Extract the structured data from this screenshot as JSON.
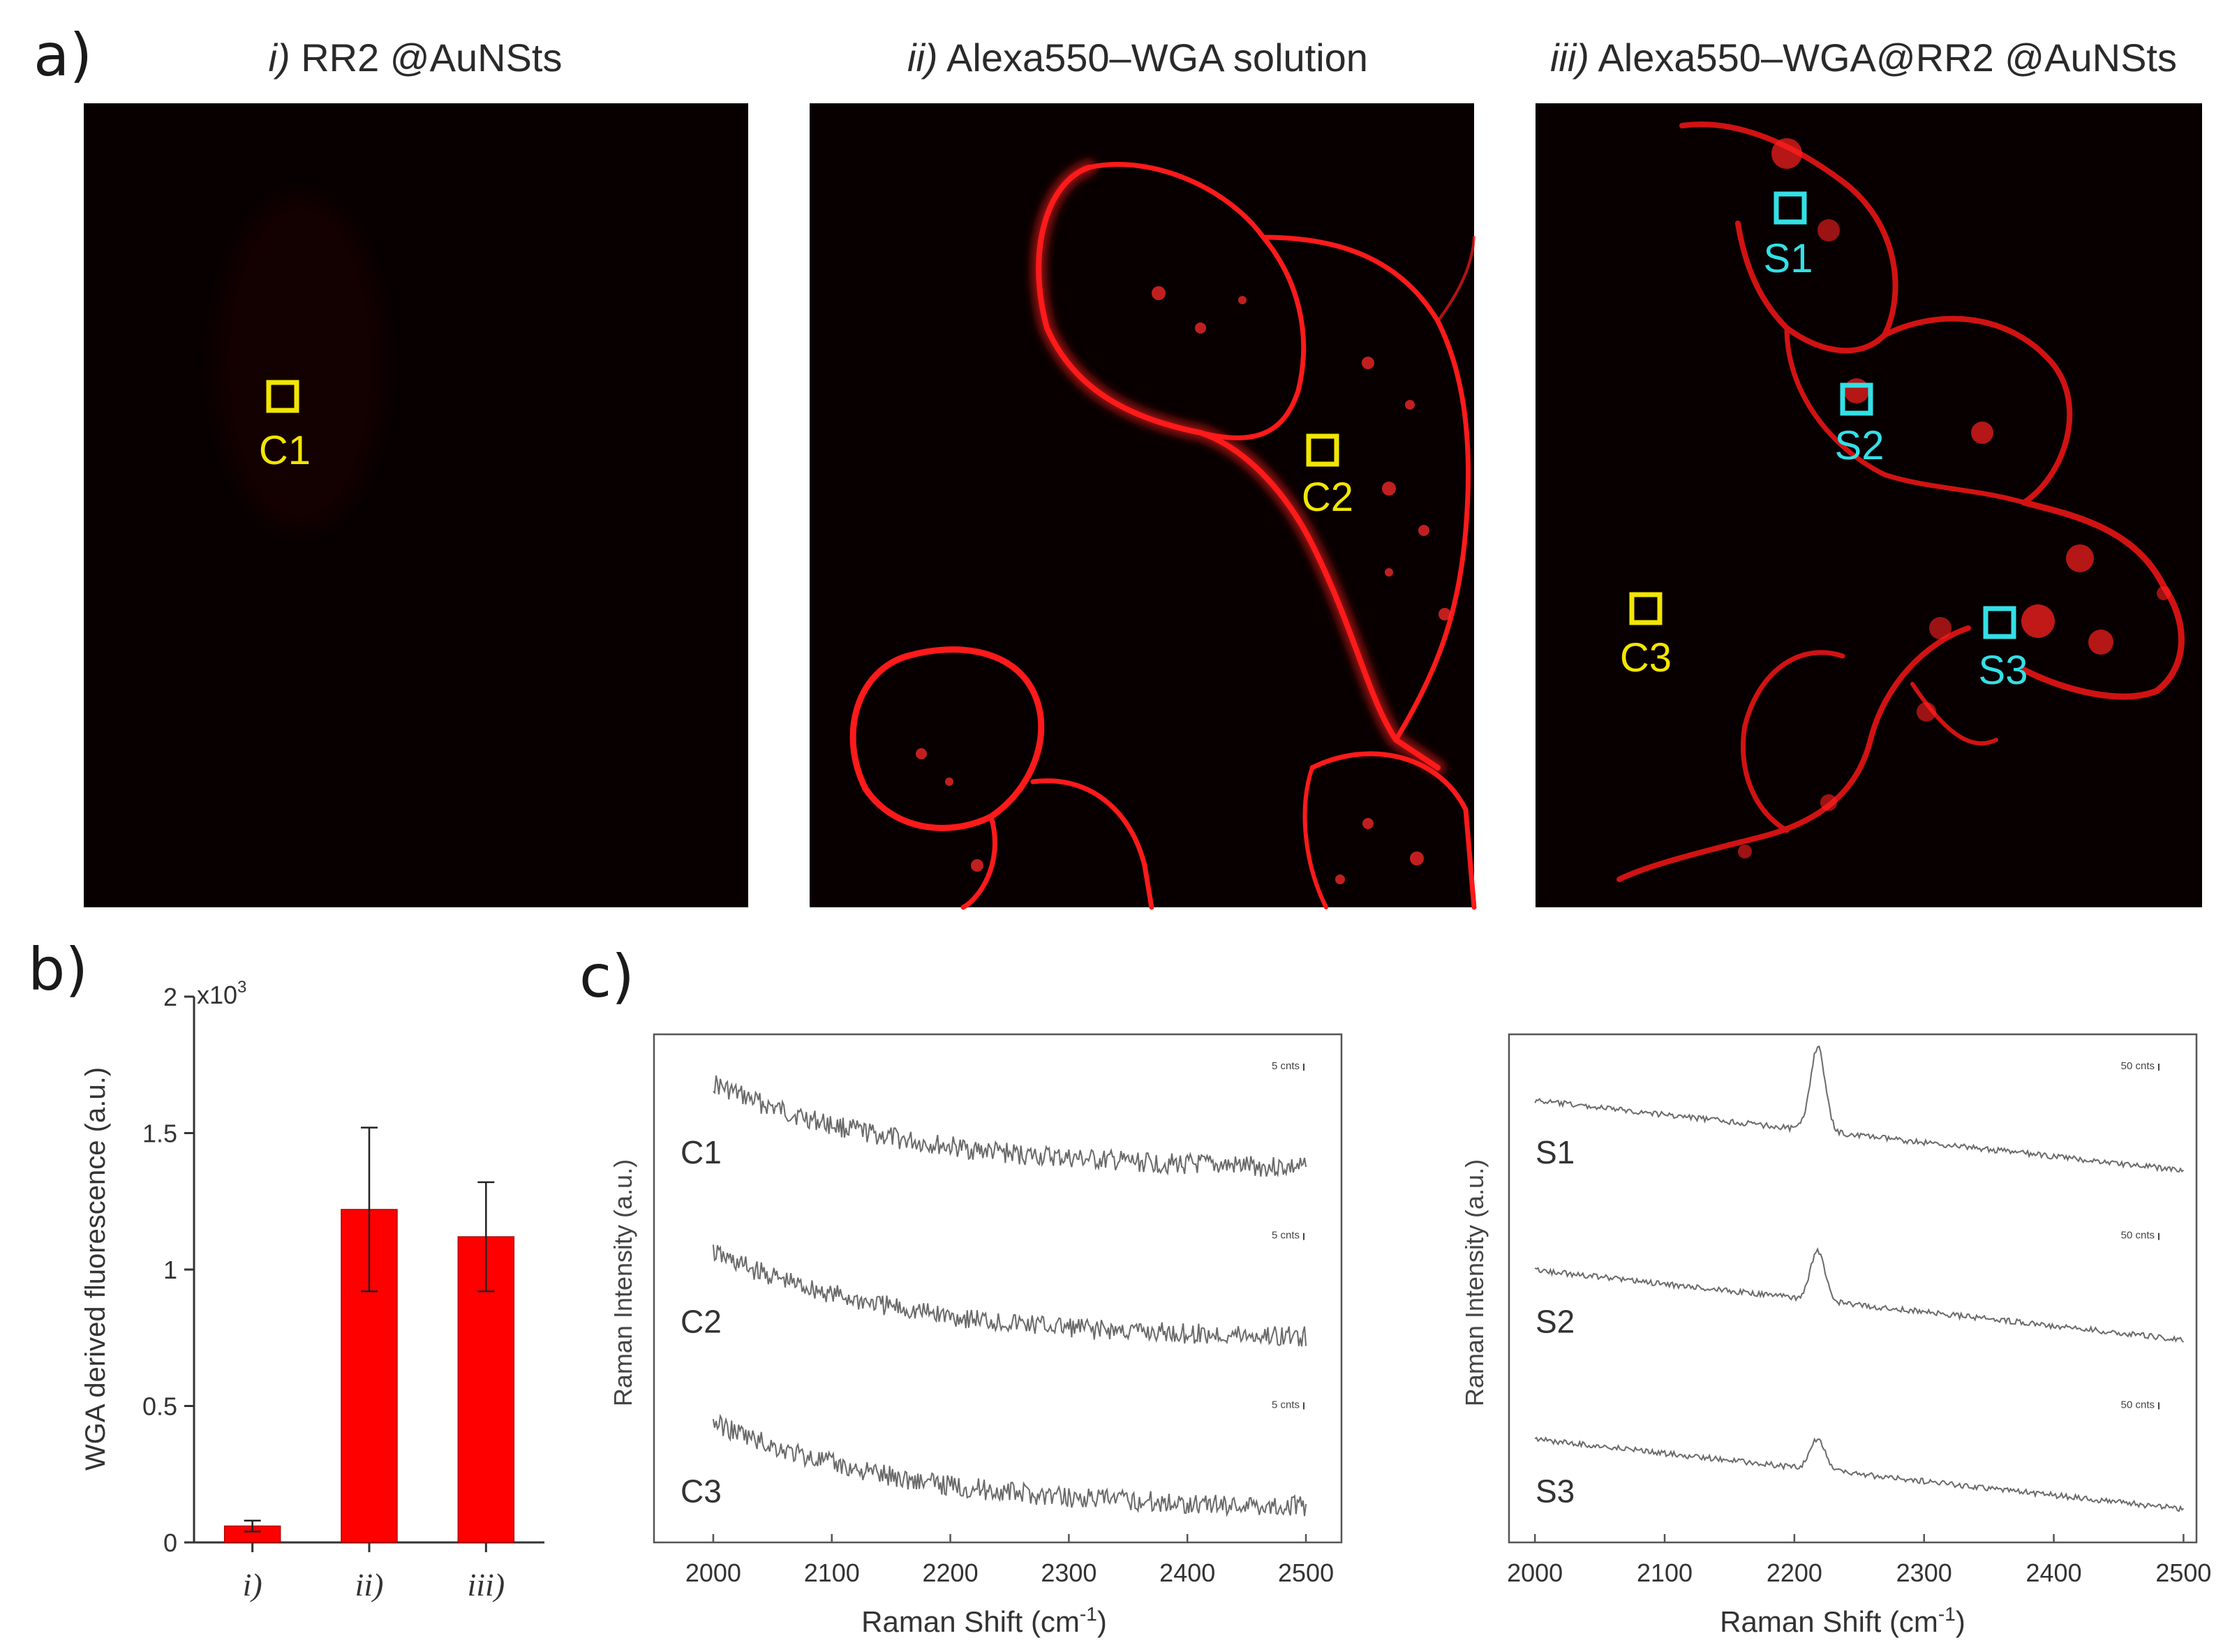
{
  "panel_labels": {
    "a": "a)",
    "b": "b)",
    "c": "c)"
  },
  "micrographs": [
    {
      "title_italic": "i)",
      "title_text": "RR2 @AuNSts",
      "markers": [
        {
          "label": "C1",
          "color": "#f2e600"
        }
      ]
    },
    {
      "title_italic": "ii)",
      "title_text": "Alexa550–WGA solution",
      "markers": [
        {
          "label": "C2",
          "color": "#f2e600"
        }
      ]
    },
    {
      "title_italic": "iii)",
      "title_text": "Alexa550–WGA@RR2 @AuNSts",
      "markers": [
        {
          "label": "S1",
          "color": "#33e0e6"
        },
        {
          "label": "S2",
          "color": "#33e0e6"
        },
        {
          "label": "C3",
          "color": "#f2e600"
        },
        {
          "label": "S3",
          "color": "#33e0e6"
        }
      ]
    }
  ],
  "chart_data": [
    {
      "type": "bar",
      "ylabel": "WGA derived fluorescence (a.u.)",
      "y_multiplier_label": "x10",
      "y_multiplier_exp": "3",
      "categories": [
        "i)",
        "ii)",
        "iii)"
      ],
      "values": [
        0.06,
        1.22,
        1.12
      ],
      "errors": [
        0.02,
        0.3,
        0.2
      ],
      "ylim": [
        0,
        2
      ],
      "yticks": [
        "0",
        "0.5",
        "1",
        "1.5",
        "2"
      ],
      "bar_color": "#ff0000"
    },
    {
      "type": "line",
      "xlabel": "Raman Shift (cm",
      "xlabel_sup": "-1",
      "xlabel_end": ")",
      "ylabel": "Raman Intensity (a.u.)",
      "xlim": [
        1950,
        2530
      ],
      "xticks": [
        "2000",
        "2100",
        "2200",
        "2300",
        "2400",
        "2500"
      ],
      "series": [
        {
          "name": "C1",
          "scale_label": "5 cnts"
        },
        {
          "name": "C2",
          "scale_label": "5 cnts"
        },
        {
          "name": "C3",
          "scale_label": "5 cnts"
        }
      ],
      "trace_x_range": [
        2000,
        2500
      ]
    },
    {
      "type": "line",
      "xlabel": "Raman Shift (cm",
      "xlabel_sup": "-1",
      "xlabel_end": ")",
      "ylabel": "Raman Intensity (a.u.)",
      "xlim": [
        1980,
        2510
      ],
      "xticks": [
        "2000",
        "2100",
        "2200",
        "2300",
        "2400",
        "2500"
      ],
      "series": [
        {
          "name": "S1",
          "scale_label": "50 cnts",
          "peak_x": 2218
        },
        {
          "name": "S2",
          "scale_label": "50 cnts",
          "peak_x": 2218
        },
        {
          "name": "S3",
          "scale_label": "50 cnts",
          "peak_x": 2218
        }
      ],
      "trace_x_range": [
        2000,
        2500
      ]
    }
  ]
}
